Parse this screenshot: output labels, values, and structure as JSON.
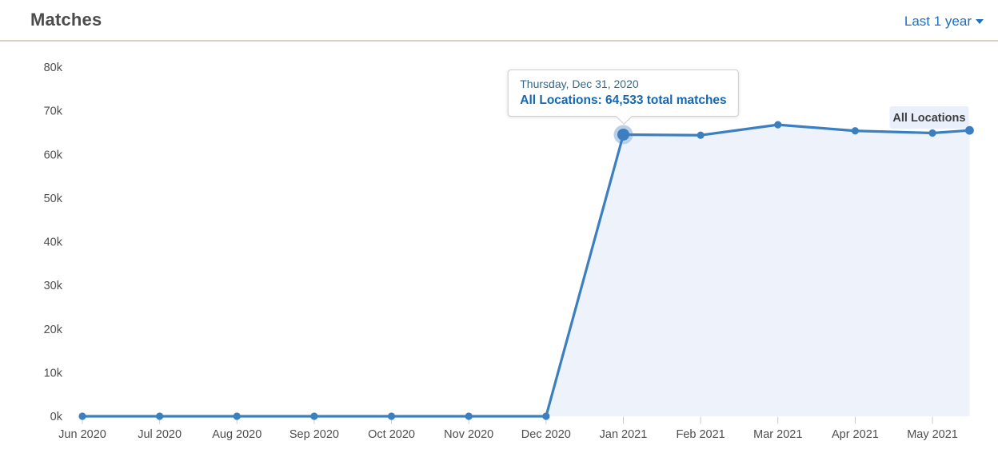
{
  "header": {
    "title": "Matches",
    "range_selector_label": "Last 1 year"
  },
  "tooltip": {
    "date_line": "Thursday, Dec 31, 2020",
    "value_line": "All Locations: 64,533 total matches"
  },
  "series_label": "All Locations",
  "chart_data": {
    "type": "line",
    "title": "Matches",
    "x_tick_labels": [
      "Jun 2020",
      "Jul 2020",
      "Aug 2020",
      "Sep 2020",
      "Oct 2020",
      "Nov 2020",
      "Dec 2020",
      "Jan 2021",
      "Feb 2021",
      "Mar 2021",
      "Apr 2021",
      "May 2021"
    ],
    "y_tick_labels": [
      "0k",
      "10k",
      "20k",
      "30k",
      "40k",
      "50k",
      "60k",
      "70k",
      "80k"
    ],
    "y_tick_step": 10000,
    "ylim": [
      0,
      80000
    ],
    "x_unit": "months_since_jun_2020_tick",
    "grid": false,
    "area_fill": true,
    "legend_position": "inline-top-right",
    "series": [
      {
        "name": "All Locations",
        "points": [
          {
            "t": 0,
            "value": 0
          },
          {
            "t": 1,
            "value": 0
          },
          {
            "t": 2,
            "value": 0
          },
          {
            "t": 3,
            "value": 0
          },
          {
            "t": 4,
            "value": 0
          },
          {
            "t": 5,
            "value": 0
          },
          {
            "t": 6,
            "value": 0
          },
          {
            "t": 7,
            "value": 64533,
            "selected": true,
            "date_label": "Thursday, Dec 31, 2020"
          },
          {
            "t": 8,
            "value": 64400
          },
          {
            "t": 9,
            "value": 66800
          },
          {
            "t": 10,
            "value": 65400
          },
          {
            "t": 11,
            "value": 64900
          },
          {
            "t": 11.48,
            "value": 65500
          }
        ]
      }
    ],
    "selected_point": {
      "date": "Thursday, Dec 31, 2020",
      "value": 64533,
      "value_text": "64,533 total matches"
    },
    "colors": {
      "line": "#3b7fc1",
      "fill": "#edf2fb",
      "halo": "#b9d0e9",
      "axis_text": "#4e4e4e",
      "tick": "#c9c9c9",
      "series_label_bg": "#eaf0fb",
      "series_label_text": "#3e3e3e"
    }
  }
}
